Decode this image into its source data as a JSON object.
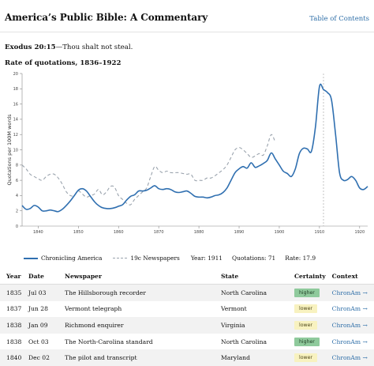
{
  "header": {
    "title": "America’s Public Bible: A Commentary",
    "toc_label": "Table of Contents"
  },
  "verse": {
    "ref": "Exodus 20:15",
    "text": "—Thou shalt not steal."
  },
  "chart_title": "Rate of quotations, 1836–1922",
  "legend": {
    "series1": "Chronicling America",
    "series2": "19c Newspapers",
    "year": "Year: 1911",
    "quotations": "Quotations: 71",
    "rate": "Rate: 17.9"
  },
  "chart_data": {
    "type": "line",
    "ylabel": "Quotations per 100M words",
    "xlim": [
      1836,
      1922
    ],
    "ylim": [
      0,
      20
    ],
    "x_ticks": [
      1840,
      1850,
      1860,
      1870,
      1880,
      1890,
      1900,
      1910,
      1920
    ],
    "y_ticks": [
      0,
      2,
      4,
      6,
      8,
      10,
      12,
      14,
      16,
      18,
      20
    ],
    "highlight_year": 1911,
    "series": [
      {
        "name": "Chronicling America",
        "color": "#2f6fb0",
        "style": "solid",
        "x": [
          1836,
          1837,
          1838,
          1839,
          1840,
          1841,
          1842,
          1843,
          1844,
          1845,
          1846,
          1847,
          1848,
          1849,
          1850,
          1851,
          1852,
          1853,
          1854,
          1855,
          1856,
          1857,
          1858,
          1859,
          1860,
          1861,
          1862,
          1863,
          1864,
          1865,
          1866,
          1867,
          1868,
          1869,
          1870,
          1871,
          1872,
          1873,
          1874,
          1875,
          1876,
          1877,
          1878,
          1879,
          1880,
          1881,
          1882,
          1883,
          1884,
          1885,
          1886,
          1887,
          1888,
          1889,
          1890,
          1891,
          1892,
          1893,
          1894,
          1895,
          1896,
          1897,
          1898,
          1899,
          1900,
          1901,
          1902,
          1903,
          1904,
          1905,
          1906,
          1907,
          1908,
          1909,
          1910,
          1911,
          1912,
          1913,
          1914,
          1915,
          1916,
          1917,
          1918,
          1919,
          1920,
          1921,
          1922
        ],
        "y": [
          2.7,
          2.2,
          2.3,
          2.7,
          2.5,
          2.0,
          2.0,
          2.1,
          2.0,
          1.9,
          2.2,
          2.7,
          3.3,
          4.0,
          4.7,
          4.9,
          4.6,
          3.9,
          3.2,
          2.7,
          2.4,
          2.3,
          2.3,
          2.4,
          2.6,
          2.8,
          3.4,
          3.9,
          4.1,
          4.6,
          4.6,
          4.7,
          5.0,
          5.3,
          4.9,
          4.8,
          4.9,
          4.8,
          4.5,
          4.4,
          4.5,
          4.6,
          4.3,
          3.9,
          3.8,
          3.8,
          3.7,
          3.8,
          4.0,
          4.1,
          4.4,
          5.0,
          6.0,
          7.0,
          7.5,
          7.8,
          7.6,
          8.3,
          7.7,
          7.9,
          8.2,
          8.6,
          9.6,
          8.8,
          8.0,
          7.2,
          6.9,
          6.5,
          7.5,
          9.5,
          10.2,
          10.1,
          9.8,
          13.0,
          18.3,
          17.9,
          17.5,
          16.5,
          12.0,
          7.0,
          6.0,
          6.1,
          6.5,
          6.0,
          5.0,
          4.8,
          5.2
        ]
      },
      {
        "name": "19c Newspapers",
        "color": "#9aa3ad",
        "style": "dashed",
        "x": [
          1836,
          1837,
          1838,
          1839,
          1840,
          1841,
          1842,
          1843,
          1844,
          1845,
          1846,
          1847,
          1848,
          1849,
          1850,
          1851,
          1852,
          1853,
          1854,
          1855,
          1856,
          1857,
          1858,
          1859,
          1860,
          1861,
          1862,
          1863,
          1864,
          1865,
          1866,
          1867,
          1868,
          1869,
          1870,
          1871,
          1872,
          1873,
          1874,
          1875,
          1876,
          1877,
          1878,
          1879,
          1880,
          1881,
          1882,
          1883,
          1884,
          1885,
          1886,
          1887,
          1888,
          1889,
          1890,
          1891,
          1892,
          1893,
          1894,
          1895,
          1896,
          1897,
          1898,
          1899
        ],
        "y": [
          8.0,
          7.5,
          6.8,
          6.5,
          6.2,
          6.0,
          6.5,
          6.8,
          6.8,
          6.3,
          5.5,
          4.5,
          4.0,
          4.0,
          4.6,
          4.2,
          3.8,
          4.0,
          4.2,
          4.8,
          4.1,
          4.5,
          5.2,
          5.1,
          4.0,
          3.5,
          3.0,
          2.8,
          3.5,
          4.0,
          4.5,
          5.0,
          6.5,
          7.8,
          7.3,
          7.0,
          7.2,
          7.0,
          7.0,
          7.0,
          6.9,
          6.8,
          6.8,
          6.0,
          6.0,
          6.0,
          6.3,
          6.3,
          6.6,
          7.0,
          7.4,
          8.0,
          9.0,
          10.0,
          10.3,
          10.0,
          9.5,
          9.0,
          9.2,
          9.5,
          9.3,
          10.5,
          12.0,
          11.0
        ]
      }
    ]
  },
  "table": {
    "headers": [
      "Year",
      "Date",
      "Newspaper",
      "State",
      "Certainty",
      "Context"
    ],
    "rows": [
      {
        "year": "1835",
        "date": "Jul 03",
        "newspaper": "The Hillsborough recorder",
        "state": "North Carolina",
        "certainty": "higher",
        "context": "ChronAm →"
      },
      {
        "year": "1837",
        "date": "Jun 28",
        "newspaper": "Vermont telegraph",
        "state": "Vermont",
        "certainty": "lower",
        "context": "ChronAm →"
      },
      {
        "year": "1838",
        "date": "Jan 09",
        "newspaper": "Richmond enquirer",
        "state": "Virginia",
        "certainty": "lower",
        "context": "ChronAm →"
      },
      {
        "year": "1838",
        "date": "Oct 03",
        "newspaper": "The North-Carolina standard",
        "state": "North Carolina",
        "certainty": "higher",
        "context": "ChronAm →"
      },
      {
        "year": "1840",
        "date": "Dec 02",
        "newspaper": "The pilot and transcript",
        "state": "Maryland",
        "certainty": "lower",
        "context": "ChronAm →"
      }
    ]
  }
}
